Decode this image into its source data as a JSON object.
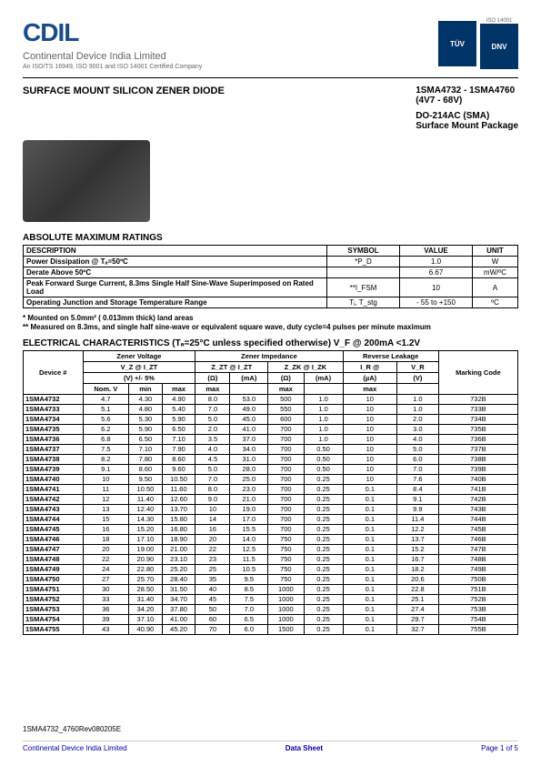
{
  "header": {
    "logo_text": "CDIL",
    "company_name": "Continental Device India Limited",
    "cert_line": "An ISO/TS 16949, ISO 9001 and ISO 14001 Certified Company",
    "badges": [
      "TÜV",
      "ISO 14001",
      "DNV"
    ]
  },
  "title": {
    "left": "SURFACE MOUNT SILICON ZENER DIODE",
    "right_line1": "1SMA4732 - 1SMA4760",
    "right_line2": "(4V7 - 68V)",
    "right_line3": "DO-214AC  (SMA)",
    "right_line4": "Surface Mount Package"
  },
  "ratings": {
    "title": "ABSOLUTE MAXIMUM RATINGS",
    "headers": [
      "DESCRIPTION",
      "SYMBOL",
      "VALUE",
      "UNIT"
    ],
    "rows": [
      [
        "Power Dissipation @ Tₐ=50ºC",
        "*P_D",
        "1.0",
        "W"
      ],
      [
        "Derate Above 50ºC",
        "",
        "6.67",
        "mW/ºC"
      ],
      [
        "Peak Forward Surge Current, 8.3ms Single Half Sine-Wave Superimposed on Rated Load",
        "**I_FSM",
        "10",
        "A"
      ],
      [
        "Operating Junction and Storage Temperature Range",
        "Tⱼ, T_stg",
        "- 55 to +150",
        "ºC"
      ]
    ]
  },
  "notes": {
    "line1": "* Mounted on 5.0mm² ( 0.013mm thick) land areas",
    "line2": "** Measured on 8.3ms, and single half sine-wave or equivalent square wave, duty cycle=4 pulses per minute maximum"
  },
  "elec": {
    "title": "ELECTRICAL CHARACTERISTICS (Tₐ=25°C unless specified otherwise)     V_F @ 200mA <1.2V",
    "group_headers": [
      "Device #",
      "Zener Voltage",
      "Zener Impedance",
      "Reverse Leakage",
      "Marking Code"
    ],
    "sub_headers1": [
      "",
      "V_Z @ I_ZT",
      "Z_ZT @ I_ZT",
      "Z_ZK @ I_ZK",
      "I_R @",
      "V_R",
      ""
    ],
    "sub_headers2": [
      "",
      "(V) +/- 5%",
      "(Ω)",
      "(mA)",
      "(Ω)",
      "(mA)",
      "(µA)",
      "(V)",
      ""
    ],
    "col_headers": [
      "",
      "Nom. V",
      "min",
      "max",
      "max",
      "",
      "max",
      "",
      "max",
      "",
      ""
    ],
    "rows": [
      [
        "1SMA4732",
        "4.7",
        "4.30",
        "4.90",
        "8.0",
        "53.0",
        "500",
        "1.0",
        "10",
        "1.0",
        "732B"
      ],
      [
        "1SMA4733",
        "5.1",
        "4.80",
        "5.40",
        "7.0",
        "49.0",
        "550",
        "1.0",
        "10",
        "1.0",
        "733B"
      ],
      [
        "1SMA4734",
        "5.6",
        "5.30",
        "5.90",
        "5.0",
        "45.0",
        "600",
        "1.0",
        "10",
        "2.0",
        "734B"
      ],
      [
        "1SMA4735",
        "6.2",
        "5.90",
        "6.50",
        "2.0",
        "41.0",
        "700",
        "1.0",
        "10",
        "3.0",
        "735B"
      ],
      [
        "1SMA4736",
        "6.8",
        "6.50",
        "7.10",
        "3.5",
        "37.0",
        "700",
        "1.0",
        "10",
        "4.0",
        "736B"
      ],
      [
        "1SMA4737",
        "7.5",
        "7.10",
        "7.90",
        "4.0",
        "34.0",
        "700",
        "0.50",
        "10",
        "5.0",
        "737B"
      ],
      [
        "1SMA4738",
        "8.2",
        "7.80",
        "8.60",
        "4.5",
        "31.0",
        "700",
        "0.50",
        "10",
        "6.0",
        "738B"
      ],
      [
        "1SMA4739",
        "9.1",
        "8.60",
        "9.60",
        "5.0",
        "28.0",
        "700",
        "0.50",
        "10",
        "7.0",
        "739B"
      ],
      [
        "1SMA4740",
        "10",
        "9.50",
        "10.50",
        "7.0",
        "25.0",
        "700",
        "0.25",
        "10",
        "7.6",
        "740B"
      ],
      [
        "1SMA4741",
        "11",
        "10.50",
        "11.60",
        "8.0",
        "23.0",
        "700",
        "0.25",
        "0.1",
        "8.4",
        "741B"
      ],
      [
        "1SMA4742",
        "12",
        "11.40",
        "12.60",
        "9.0",
        "21.0",
        "700",
        "0.25",
        "0.1",
        "9.1",
        "742B"
      ],
      [
        "1SMA4743",
        "13",
        "12.40",
        "13.70",
        "10",
        "19.0",
        "700",
        "0.25",
        "0.1",
        "9.9",
        "743B"
      ],
      [
        "1SMA4744",
        "15",
        "14.30",
        "15.80",
        "14",
        "17.0",
        "700",
        "0.25",
        "0.1",
        "11.4",
        "744B"
      ],
      [
        "1SMA4745",
        "16",
        "15.20",
        "16.80",
        "16",
        "15.5",
        "700",
        "0.25",
        "0.1",
        "12.2",
        "745B"
      ],
      [
        "1SMA4746",
        "18",
        "17.10",
        "18.90",
        "20",
        "14.0",
        "750",
        "0.25",
        "0.1",
        "13.7",
        "746B"
      ],
      [
        "1SMA4747",
        "20",
        "19.00",
        "21.00",
        "22",
        "12.5",
        "750",
        "0.25",
        "0.1",
        "15.2",
        "747B"
      ],
      [
        "1SMA4748",
        "22",
        "20.90",
        "23.10",
        "23",
        "11.5",
        "750",
        "0.25",
        "0.1",
        "16.7",
        "748B"
      ],
      [
        "1SMA4749",
        "24",
        "22.80",
        "25.20",
        "25",
        "10.5",
        "750",
        "0.25",
        "0.1",
        "18.2",
        "749B"
      ],
      [
        "1SMA4750",
        "27",
        "25.70",
        "28.40",
        "35",
        "9.5",
        "750",
        "0.25",
        "0.1",
        "20.6",
        "750B"
      ],
      [
        "1SMA4751",
        "30",
        "28.50",
        "31.50",
        "40",
        "8.5",
        "1000",
        "0.25",
        "0.1",
        "22.8",
        "751B"
      ],
      [
        "1SMA4752",
        "33",
        "31.40",
        "34.70",
        "45",
        "7.5",
        "1000",
        "0.25",
        "0.1",
        "25.1",
        "752B"
      ],
      [
        "1SMA4753",
        "36",
        "34.20",
        "37.80",
        "50",
        "7.0",
        "1000",
        "0.25",
        "0.1",
        "27.4",
        "753B"
      ],
      [
        "1SMA4754",
        "39",
        "37.10",
        "41.00",
        "60",
        "6.5",
        "1000",
        "0.25",
        "0.1",
        "29.7",
        "754B"
      ],
      [
        "1SMA4755",
        "43",
        "40.90",
        "45.20",
        "70",
        "6.0",
        "1500",
        "0.25",
        "0.1",
        "32.7",
        "755B"
      ]
    ]
  },
  "footer": {
    "code": "1SMA4732_4760Rev080205E",
    "left": "Continental Device India Limited",
    "center": "Data Sheet",
    "right": "Page 1 of 5"
  }
}
